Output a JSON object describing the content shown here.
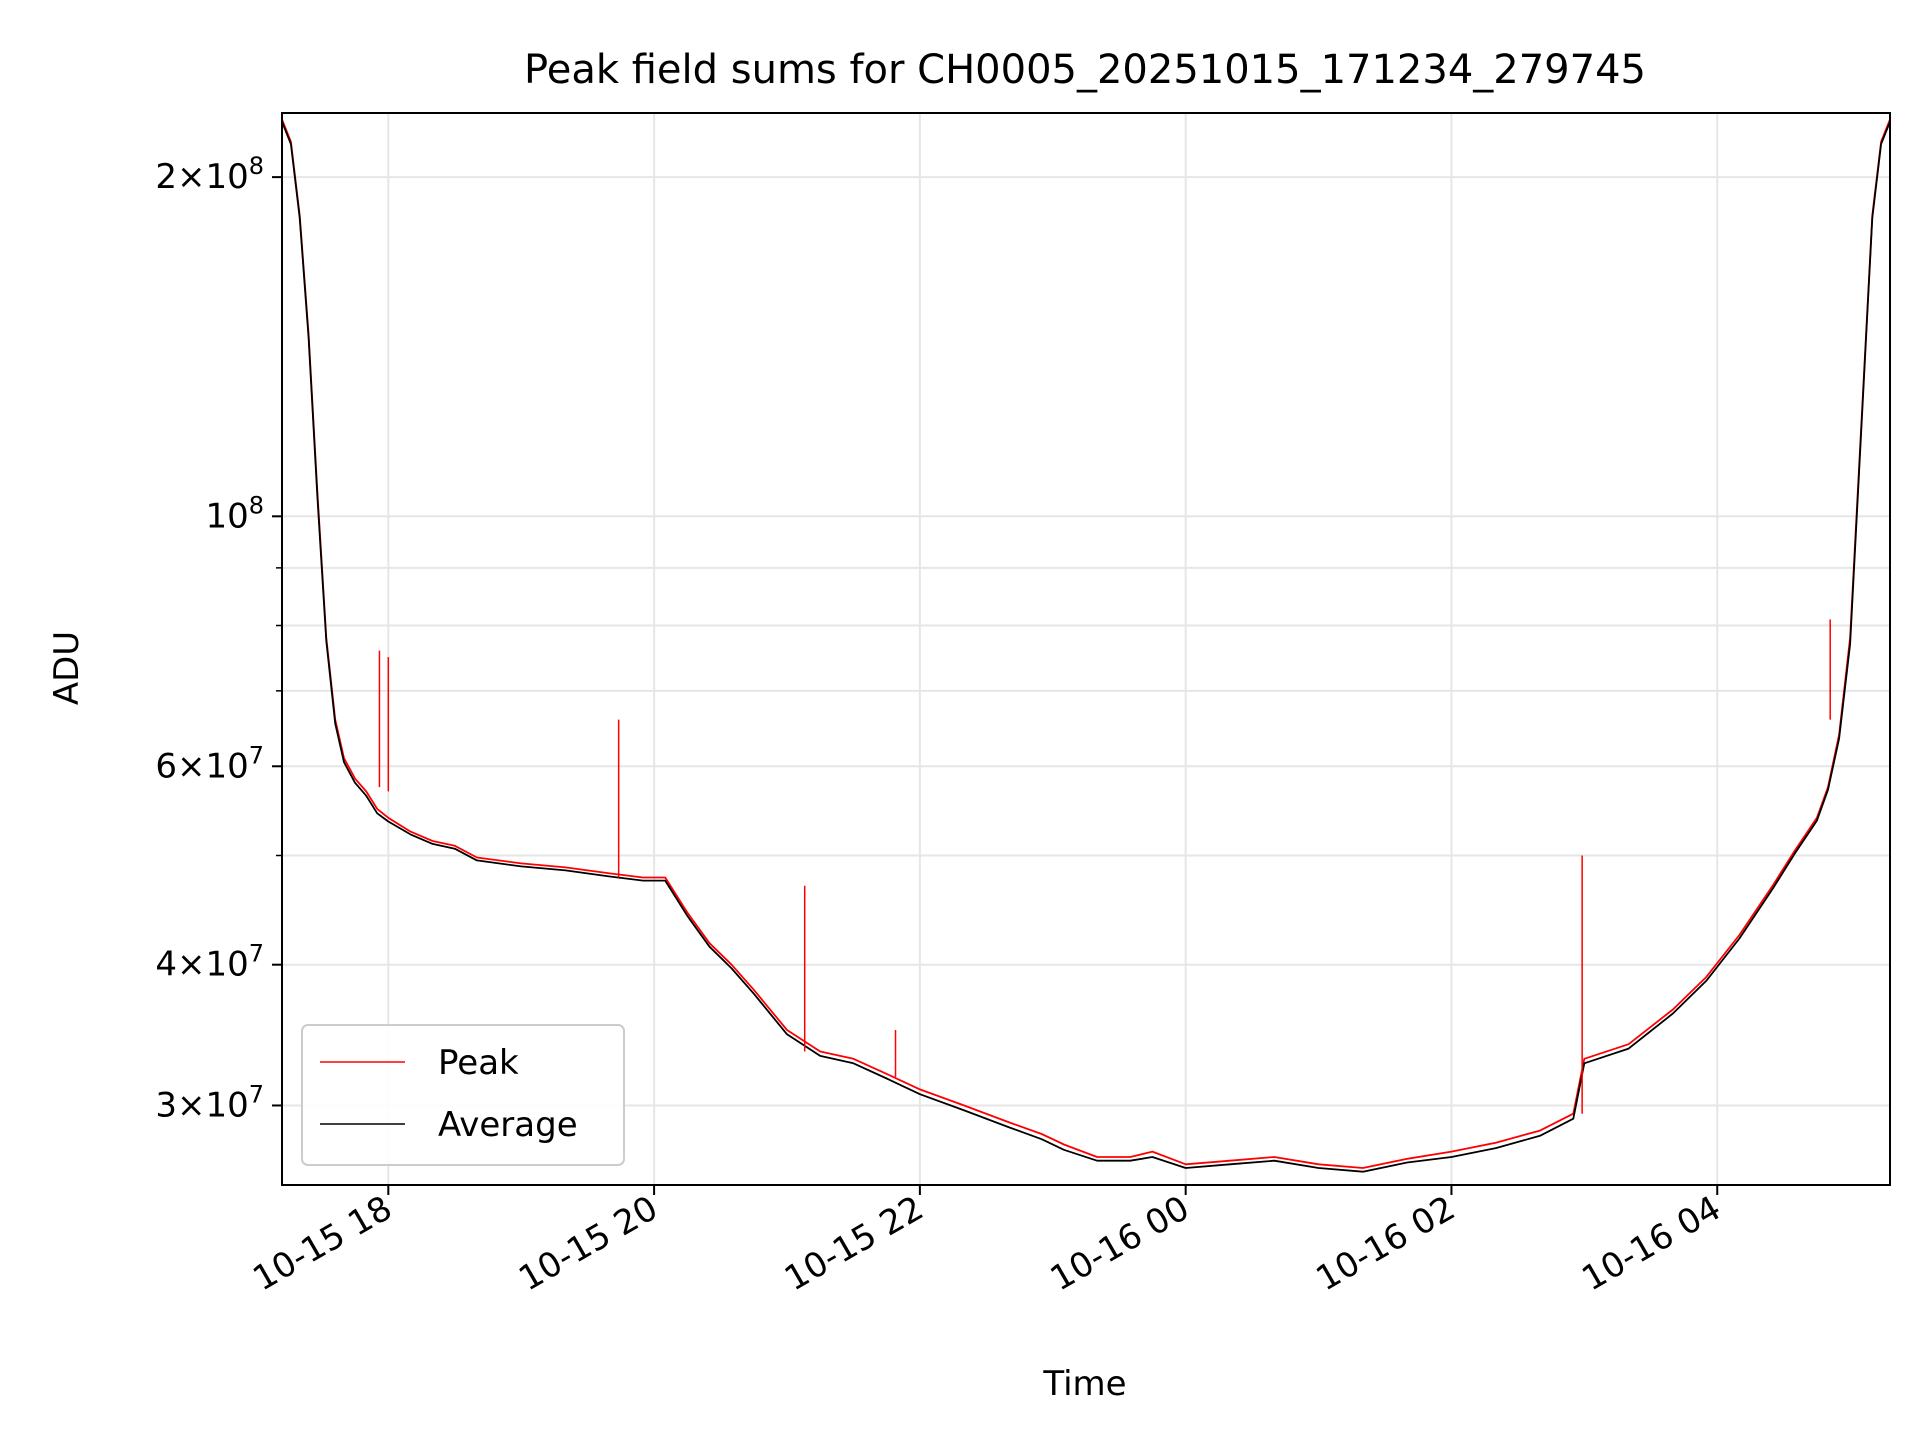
{
  "chart_data": {
    "type": "line",
    "title": "Peak field sums for CH0005_20251015_171234_279745",
    "xlabel": "Time",
    "ylabel": "ADU",
    "x_scale": "time",
    "y_scale": "log",
    "x_range": [
      "2025-10-15 17:12",
      "2025-10-16 05:18"
    ],
    "ylim": [
      25500000,
      228000000
    ],
    "grid": true,
    "legend_position": "lower-left",
    "x_ticks": [
      {
        "t": "2025-10-15 18:00",
        "label": "10-15 18"
      },
      {
        "t": "2025-10-15 20:00",
        "label": "10-15 20"
      },
      {
        "t": "2025-10-15 22:00",
        "label": "10-15 22"
      },
      {
        "t": "2025-10-16 00:00",
        "label": "10-16 00"
      },
      {
        "t": "2025-10-16 02:00",
        "label": "10-16 02"
      },
      {
        "t": "2025-10-16 04:00",
        "label": "10-16 04"
      }
    ],
    "y_major_ticks": [
      {
        "v": 30000000,
        "mant": "3",
        "exp": "7"
      },
      {
        "v": 40000000,
        "mant": "4",
        "exp": "7"
      },
      {
        "v": 60000000,
        "mant": "6",
        "exp": "7"
      },
      {
        "v": 100000000,
        "mant": "",
        "exp": "8"
      },
      {
        "v": 200000000,
        "mant": "2",
        "exp": "8"
      }
    ],
    "y_minor_ticks": [
      50000000,
      70000000,
      80000000,
      90000000
    ],
    "series": [
      {
        "name": "Peak",
        "color": "#ff0000",
        "x": [
          "2025-10-15 17:12",
          "2025-10-15 17:16",
          "2025-10-15 17:20",
          "2025-10-15 17:24",
          "2025-10-15 17:28",
          "2025-10-15 17:32",
          "2025-10-15 17:36",
          "2025-10-15 17:40",
          "2025-10-15 17:45",
          "2025-10-15 17:50",
          "2025-10-15 17:55",
          "2025-10-15 18:00",
          "2025-10-15 18:10",
          "2025-10-15 18:20",
          "2025-10-15 18:30",
          "2025-10-15 18:40",
          "2025-10-15 19:00",
          "2025-10-15 19:20",
          "2025-10-15 19:40",
          "2025-10-15 19:55",
          "2025-10-15 20:05",
          "2025-10-15 20:15",
          "2025-10-15 20:25",
          "2025-10-15 20:35",
          "2025-10-15 20:45",
          "2025-10-15 21:00",
          "2025-10-15 21:15",
          "2025-10-15 21:30",
          "2025-10-15 21:45",
          "2025-10-15 22:00",
          "2025-10-15 22:20",
          "2025-10-15 22:40",
          "2025-10-15 22:55",
          "2025-10-15 23:05",
          "2025-10-15 23:20",
          "2025-10-15 23:35",
          "2025-10-15 23:45",
          "2025-10-16 00:00",
          "2025-10-16 00:20",
          "2025-10-16 00:40",
          "2025-10-16 01:00",
          "2025-10-16 01:20",
          "2025-10-16 01:40",
          "2025-10-16 02:00",
          "2025-10-16 02:20",
          "2025-10-16 02:40",
          "2025-10-16 02:55",
          "2025-10-16 03:00",
          "2025-10-16 03:20",
          "2025-10-16 03:40",
          "2025-10-16 03:55",
          "2025-10-16 04:10",
          "2025-10-16 04:25",
          "2025-10-16 04:35",
          "2025-10-16 04:45",
          "2025-10-16 04:50",
          "2025-10-16 04:55",
          "2025-10-16 05:00",
          "2025-10-16 05:05",
          "2025-10-16 05:10",
          "2025-10-16 05:14",
          "2025-10-16 05:18"
        ],
        "y": [
          225000000,
          215000000,
          185000000,
          145000000,
          105000000,
          78000000,
          66000000,
          61000000,
          58500000,
          57000000,
          55000000,
          54000000,
          52500000,
          51500000,
          51000000,
          49800000,
          49200000,
          48800000,
          48200000,
          47800000,
          47800000,
          44500000,
          41800000,
          40000000,
          38000000,
          35000000,
          33500000,
          33000000,
          32000000,
          31000000,
          30000000,
          29000000,
          28300000,
          27700000,
          27000000,
          27000000,
          27300000,
          26600000,
          26800000,
          27000000,
          26600000,
          26400000,
          26900000,
          27300000,
          27800000,
          28500000,
          29500000,
          33000000,
          34000000,
          36500000,
          39000000,
          42500000,
          47000000,
          50500000,
          54000000,
          57500000,
          64000000,
          78000000,
          120000000,
          185000000,
          215000000,
          225000000
        ]
      },
      {
        "name": "Average",
        "color": "#000000",
        "x": [
          "2025-10-15 17:12",
          "2025-10-15 17:16",
          "2025-10-15 17:20",
          "2025-10-15 17:24",
          "2025-10-15 17:28",
          "2025-10-15 17:32",
          "2025-10-15 17:36",
          "2025-10-15 17:40",
          "2025-10-15 17:45",
          "2025-10-15 17:50",
          "2025-10-15 17:55",
          "2025-10-15 18:00",
          "2025-10-15 18:10",
          "2025-10-15 18:20",
          "2025-10-15 18:30",
          "2025-10-15 18:40",
          "2025-10-15 19:00",
          "2025-10-15 19:20",
          "2025-10-15 19:40",
          "2025-10-15 19:55",
          "2025-10-15 20:05",
          "2025-10-15 20:15",
          "2025-10-15 20:25",
          "2025-10-15 20:35",
          "2025-10-15 20:45",
          "2025-10-15 21:00",
          "2025-10-15 21:15",
          "2025-10-15 21:30",
          "2025-10-15 21:45",
          "2025-10-15 22:00",
          "2025-10-15 22:20",
          "2025-10-15 22:40",
          "2025-10-15 22:55",
          "2025-10-15 23:05",
          "2025-10-15 23:20",
          "2025-10-15 23:35",
          "2025-10-15 23:45",
          "2025-10-16 00:00",
          "2025-10-16 00:20",
          "2025-10-16 00:40",
          "2025-10-16 01:00",
          "2025-10-16 01:20",
          "2025-10-16 01:40",
          "2025-10-16 02:00",
          "2025-10-16 02:20",
          "2025-10-16 02:40",
          "2025-10-16 02:55",
          "2025-10-16 03:00",
          "2025-10-16 03:20",
          "2025-10-16 03:40",
          "2025-10-16 03:55",
          "2025-10-16 04:10",
          "2025-10-16 04:25",
          "2025-10-16 04:35",
          "2025-10-16 04:45",
          "2025-10-16 04:50",
          "2025-10-16 04:55",
          "2025-10-16 05:00",
          "2025-10-16 05:05",
          "2025-10-16 05:10",
          "2025-10-16 05:14",
          "2025-10-16 05:18"
        ],
        "y": [
          224000000,
          214000000,
          184000000,
          144000000,
          104000000,
          77500000,
          65500000,
          60500000,
          58000000,
          56500000,
          54500000,
          53600000,
          52200000,
          51200000,
          50700000,
          49500000,
          48900000,
          48500000,
          47900000,
          47500000,
          47500000,
          44200000,
          41500000,
          39700000,
          37700000,
          34700000,
          33200000,
          32700000,
          31700000,
          30700000,
          29700000,
          28700000,
          28000000,
          27400000,
          26800000,
          26800000,
          27000000,
          26400000,
          26600000,
          26800000,
          26400000,
          26200000,
          26700000,
          27000000,
          27500000,
          28200000,
          29200000,
          32700000,
          33700000,
          36200000,
          38700000,
          42200000,
          46700000,
          50200000,
          53700000,
          57200000,
          63500000,
          77000000,
          119000000,
          184000000,
          214000000,
          224000000
        ]
      }
    ],
    "spikes": [
      {
        "t": "2025-10-15 17:56",
        "from": 57500000,
        "to": 76000000
      },
      {
        "t": "2025-10-15 18:00",
        "from": 57000000,
        "to": 75000000
      },
      {
        "t": "2025-10-15 19:44",
        "from": 47800000,
        "to": 66000000
      },
      {
        "t": "2025-10-15 21:08",
        "from": 33500000,
        "to": 47000000
      },
      {
        "t": "2025-10-15 21:49",
        "from": 31800000,
        "to": 35000000
      },
      {
        "t": "2025-10-16 02:59",
        "from": 29500000,
        "to": 50000000
      },
      {
        "t": "2025-10-16 04:51",
        "from": 66000000,
        "to": 81000000
      }
    ],
    "legend": {
      "peak": "Peak",
      "average": "Average"
    }
  }
}
